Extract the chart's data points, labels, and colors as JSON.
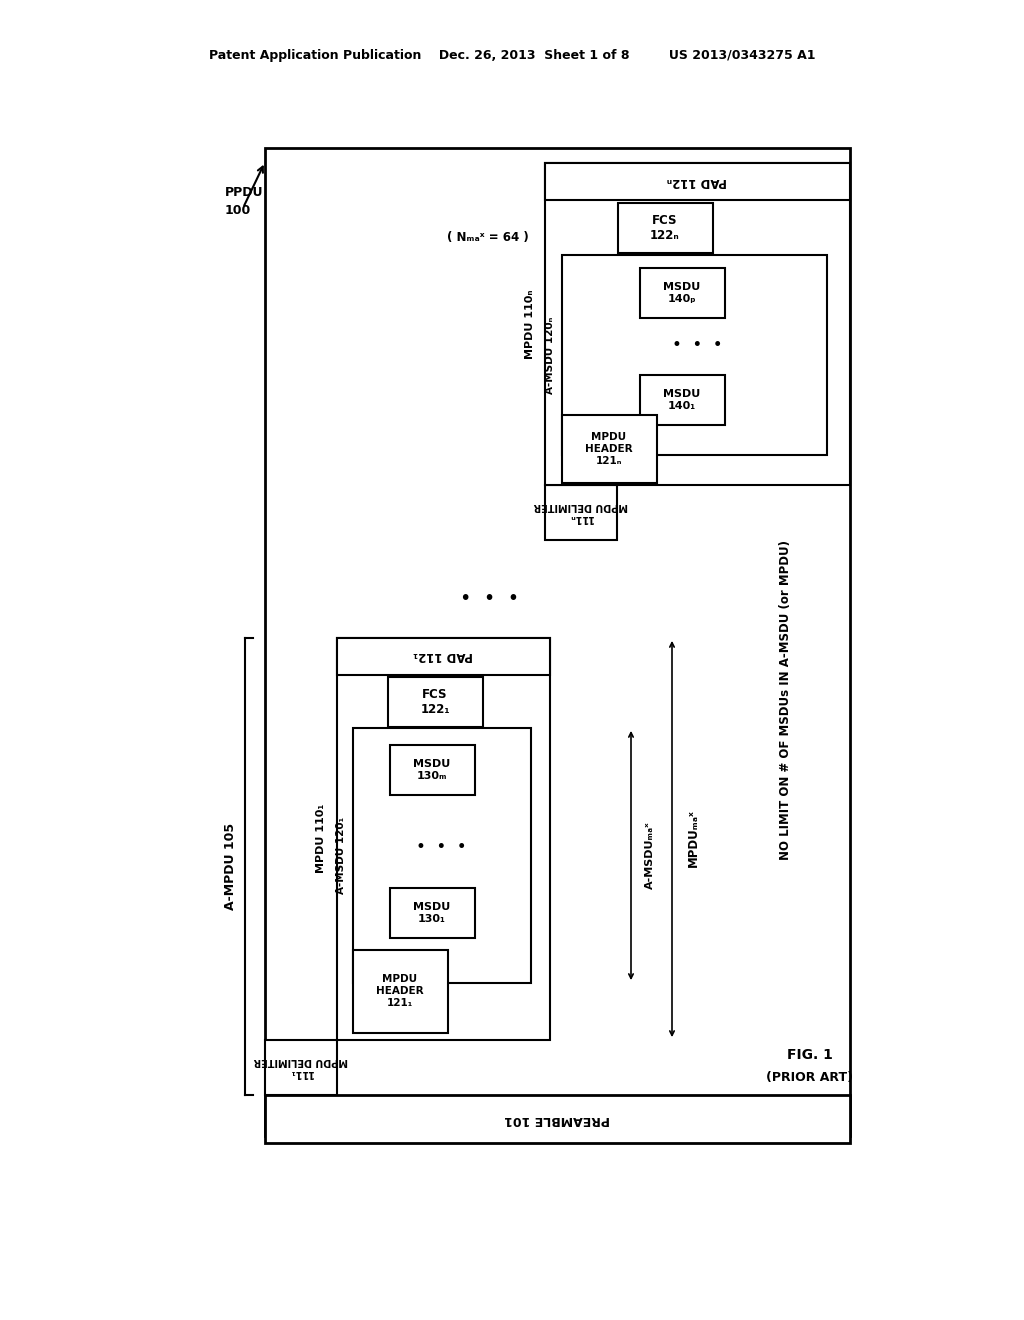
{
  "bg_color": "#ffffff",
  "header_text": "Patent Application Publication    Dec. 26, 2013  Sheet 1 of 8         US 2013/0343275 A1",
  "preamble_label": "PREAMBLE 101",
  "pad1_label": "PAD 112₁",
  "pad2_label": "PAD 112ₙ",
  "fcs1_label": "FCS\n122₁",
  "fcs2_label": "FCS\n122ₙ",
  "mpdu_header1_label": "MPDU\nHEADER\n121₁",
  "mpdu_header2_label": "MPDU\nHEADER\n121ₙ",
  "msdu1a_label": "MSDU\n130₁",
  "msdu1b_label": "MSDU\n130ₘ",
  "msdu2a_label": "MSDU\n140₁",
  "msdu2b_label": "MSDU\n140ₚ",
  "mpdu_delim1_text": "111₁\nMPDU DELIMITER",
  "mpdu_delim2_text": "111ₙ\nMPDU DELIMITER",
  "mpdu1_label": "MPDU 110₁",
  "mpdu2_label": "MPDU 110ₙ",
  "amsdu1_label": "A-MSDU 120₁",
  "amsdu2_label": "A-MSDU 120ₙ",
  "ppdu_label": "PPDU",
  "ppdu_num": "100",
  "ampdu_label": "A-MPDU 105",
  "nmax_label": "( Nₘₐˣ = 64 )",
  "amsdu_max_label": "A-MSDUₘₐˣ",
  "mpdu_max_label": "MPDUₘₐˣ",
  "no_limit_label": "NO LIMIT ON # OF MSDUs IN A-MSDU (or MPDU)",
  "fig_label": "FIG. 1",
  "prior_art_label": "(PRIOR ART)"
}
